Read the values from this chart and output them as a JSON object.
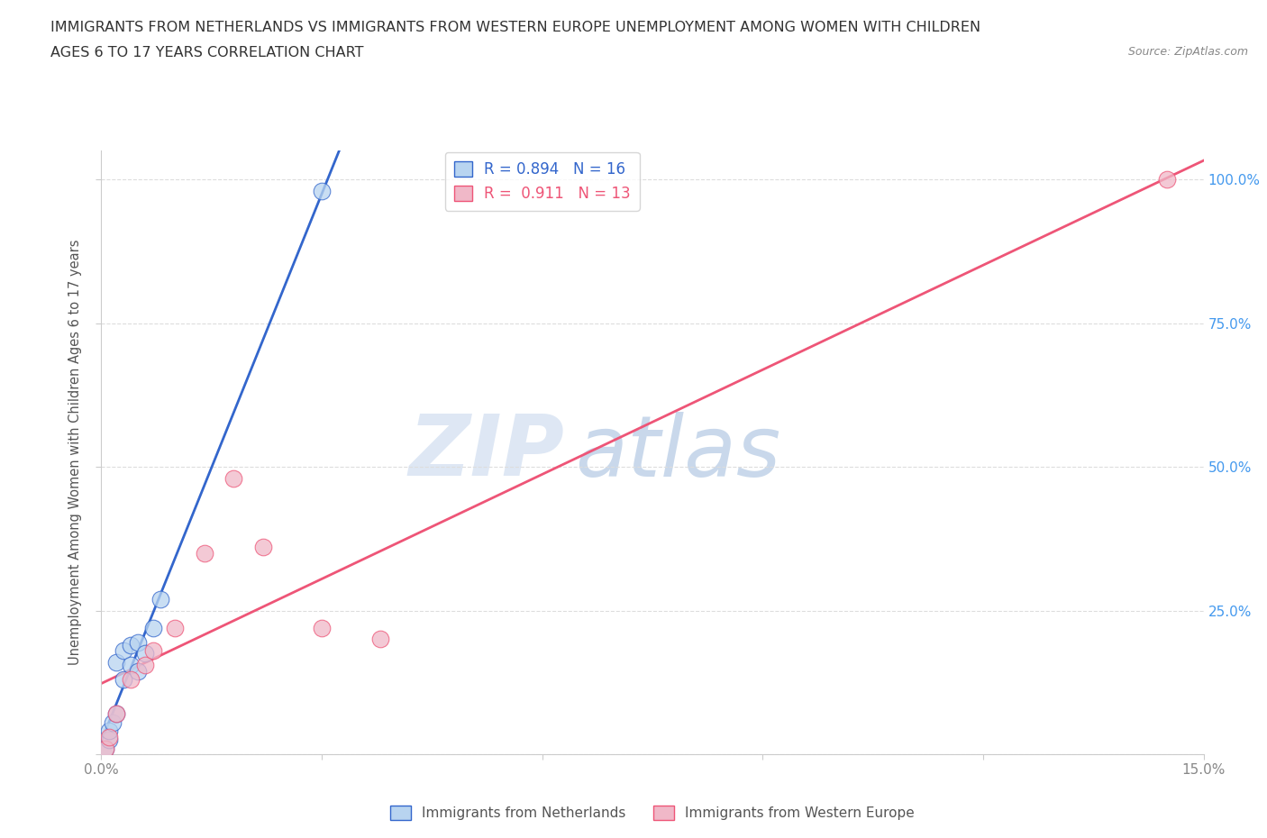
{
  "title_line1": "IMMIGRANTS FROM NETHERLANDS VS IMMIGRANTS FROM WESTERN EUROPE UNEMPLOYMENT AMONG WOMEN WITH CHILDREN",
  "title_line2": "AGES 6 TO 17 YEARS CORRELATION CHART",
  "source": "Source: ZipAtlas.com",
  "ylabel": "Unemployment Among Women with Children Ages 6 to 17 years",
  "xmin": 0.0,
  "xmax": 0.15,
  "ymin": 0.0,
  "ymax": 1.05,
  "yticks": [
    0.0,
    0.25,
    0.5,
    0.75,
    1.0
  ],
  "ytick_labels": [
    "",
    "25.0%",
    "50.0%",
    "75.0%",
    "100.0%"
  ],
  "xticks": [
    0.0,
    0.03,
    0.06,
    0.09,
    0.12,
    0.15
  ],
  "xtick_labels": [
    "0.0%",
    "",
    "",
    "",
    "",
    "15.0%"
  ],
  "netherlands_x": [
    0.0005,
    0.001,
    0.001,
    0.0015,
    0.002,
    0.002,
    0.003,
    0.003,
    0.004,
    0.004,
    0.005,
    0.005,
    0.006,
    0.007,
    0.008,
    0.03
  ],
  "netherlands_y": [
    0.01,
    0.025,
    0.04,
    0.055,
    0.07,
    0.16,
    0.13,
    0.18,
    0.155,
    0.19,
    0.145,
    0.195,
    0.175,
    0.22,
    0.27,
    0.98
  ],
  "western_x": [
    0.0005,
    0.001,
    0.002,
    0.004,
    0.006,
    0.007,
    0.01,
    0.014,
    0.018,
    0.022,
    0.03,
    0.038,
    0.145
  ],
  "western_y": [
    0.01,
    0.03,
    0.07,
    0.13,
    0.155,
    0.18,
    0.22,
    0.35,
    0.48,
    0.36,
    0.22,
    0.2,
    1.0
  ],
  "netherlands_R": 0.894,
  "netherlands_N": 16,
  "western_R": 0.911,
  "western_N": 13,
  "netherlands_color": "#b8d4f0",
  "western_color": "#f0b8c8",
  "netherlands_line_color": "#3366cc",
  "western_line_color": "#ee5577",
  "legend_label_netherlands": "Immigrants from Netherlands",
  "legend_label_western": "Immigrants from Western Europe",
  "watermark_zip": "ZIP",
  "watermark_atlas": "atlas",
  "background_color": "#ffffff",
  "grid_color": "#dddddd",
  "right_tick_color": "#4499ee",
  "title_color": "#333333",
  "source_color": "#888888"
}
